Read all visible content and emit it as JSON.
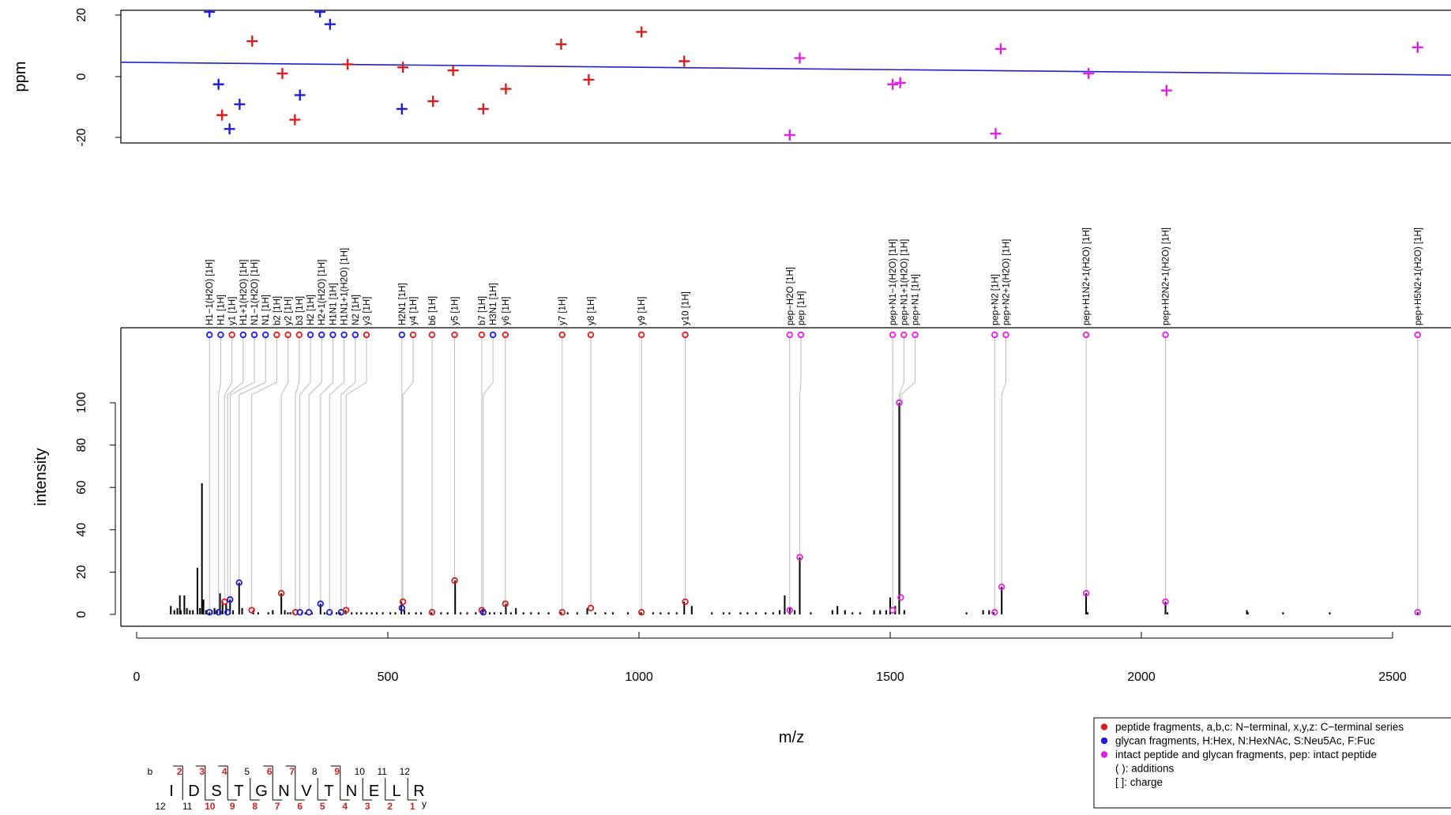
{
  "chart_data": [
    {
      "type": "scatter",
      "name": "ppm-error",
      "ylabel": "ppm",
      "xlim": [
        0,
        2620
      ],
      "ylim": [
        -22,
        22
      ],
      "y_ticks": [
        "20",
        "0",
        "-20"
      ],
      "grid": false,
      "trend_line": {
        "x": [
          -60,
          2620
        ],
        "y": [
          4.7,
          0.5
        ],
        "color": "#1f1fd6"
      },
      "series": [
        {
          "group": "peptide",
          "color": "#d61f1f",
          "points": [
            [
              170,
              -12.5
            ],
            [
              230,
              11.5
            ],
            [
              290,
              1
            ],
            [
              315,
              -14
            ],
            [
              420,
              4
            ],
            [
              530,
              3
            ],
            [
              590,
              -8
            ],
            [
              630,
              2
            ],
            [
              690,
              -10.5
            ],
            [
              735,
              -4
            ],
            [
              845,
              10.5
            ],
            [
              900,
              -1
            ],
            [
              1005,
              14.5
            ],
            [
              1090,
              5
            ]
          ]
        },
        {
          "group": "glycan",
          "color": "#1f1fd6",
          "points": [
            [
              145,
              21
            ],
            [
              163,
              -2.5
            ],
            [
              185,
              -17
            ],
            [
              205,
              -9
            ],
            [
              325,
              -6
            ],
            [
              365,
              21
            ],
            [
              385,
              17
            ],
            [
              528,
              -10.5
            ]
          ]
        },
        {
          "group": "intact",
          "color": "#e020e0",
          "points": [
            [
              1300,
              -19
            ],
            [
              1320,
              6
            ],
            [
              1505,
              -2.5
            ],
            [
              1520,
              -2
            ],
            [
              1710,
              -18.5
            ],
            [
              1720,
              9
            ],
            [
              1895,
              1
            ],
            [
              2050,
              -4.5
            ],
            [
              2550,
              9.5
            ]
          ]
        }
      ]
    },
    {
      "type": "bar",
      "name": "ms2-spectrum",
      "xlabel": "m/z",
      "ylabel": "intensity",
      "xlim": [
        -60,
        2620
      ],
      "ylim": [
        0,
        110
      ],
      "x_ticks": [
        "0",
        "500",
        "1000",
        "1500",
        "2000",
        "2500"
      ],
      "y_ticks": [
        "0",
        "20",
        "40",
        "60",
        "80",
        "100"
      ],
      "peaks": [
        [
          68,
          4
        ],
        [
          75,
          2
        ],
        [
          81,
          3
        ],
        [
          86,
          9
        ],
        [
          88,
          2
        ],
        [
          95,
          9
        ],
        [
          100,
          3
        ],
        [
          106,
          2
        ],
        [
          112,
          2
        ],
        [
          121,
          22
        ],
        [
          126,
          3
        ],
        [
          130,
          62
        ],
        [
          133,
          7
        ],
        [
          138,
          2
        ],
        [
          145,
          1
        ],
        [
          150,
          2
        ],
        [
          155,
          3
        ],
        [
          160,
          2
        ],
        [
          166,
          10
        ],
        [
          171,
          6
        ],
        [
          178,
          5
        ],
        [
          186,
          7
        ],
        [
          192,
          2
        ],
        [
          204,
          15
        ],
        [
          210,
          3
        ],
        [
          232,
          2
        ],
        [
          242,
          1
        ],
        [
          262,
          1
        ],
        [
          271,
          2
        ],
        [
          288,
          10
        ],
        [
          295,
          2
        ],
        [
          301,
          1
        ],
        [
          306,
          1
        ],
        [
          312,
          1
        ],
        [
          320,
          1
        ],
        [
          329,
          1
        ],
        [
          336,
          1
        ],
        [
          349,
          1
        ],
        [
          366,
          5
        ],
        [
          374,
          1
        ],
        [
          379,
          1
        ],
        [
          388,
          1
        ],
        [
          398,
          1
        ],
        [
          405,
          1
        ],
        [
          416,
          2
        ],
        [
          428,
          1
        ],
        [
          438,
          1
        ],
        [
          447,
          1
        ],
        [
          458,
          1
        ],
        [
          468,
          1
        ],
        [
          478,
          1
        ],
        [
          490,
          1
        ],
        [
          505,
          1
        ],
        [
          515,
          1
        ],
        [
          527,
          6
        ],
        [
          533,
          2
        ],
        [
          542,
          1
        ],
        [
          556,
          1
        ],
        [
          566,
          1
        ],
        [
          587,
          1
        ],
        [
          606,
          1
        ],
        [
          619,
          1
        ],
        [
          634,
          16
        ],
        [
          645,
          1
        ],
        [
          658,
          1
        ],
        [
          675,
          1
        ],
        [
          689,
          2
        ],
        [
          703,
          1
        ],
        [
          712,
          1
        ],
        [
          725,
          1
        ],
        [
          735,
          5
        ],
        [
          745,
          1
        ],
        [
          755,
          3
        ],
        [
          770,
          1
        ],
        [
          785,
          1
        ],
        [
          800,
          1
        ],
        [
          820,
          1
        ],
        [
          845,
          1
        ],
        [
          858,
          1
        ],
        [
          877,
          1
        ],
        [
          897,
          3
        ],
        [
          913,
          1
        ],
        [
          933,
          1
        ],
        [
          948,
          1
        ],
        [
          978,
          1
        ],
        [
          1004,
          1
        ],
        [
          1028,
          1
        ],
        [
          1043,
          1
        ],
        [
          1059,
          1
        ],
        [
          1075,
          1
        ],
        [
          1090,
          6
        ],
        [
          1105,
          4
        ],
        [
          1145,
          1
        ],
        [
          1168,
          1
        ],
        [
          1180,
          1
        ],
        [
          1202,
          1
        ],
        [
          1216,
          1
        ],
        [
          1233,
          1
        ],
        [
          1252,
          1
        ],
        [
          1267,
          1
        ],
        [
          1280,
          2
        ],
        [
          1290,
          9
        ],
        [
          1300,
          3
        ],
        [
          1310,
          2
        ],
        [
          1320,
          27
        ],
        [
          1342,
          1
        ],
        [
          1385,
          2
        ],
        [
          1395,
          4
        ],
        [
          1410,
          2
        ],
        [
          1425,
          1
        ],
        [
          1440,
          1
        ],
        [
          1468,
          2
        ],
        [
          1480,
          2
        ],
        [
          1492,
          2
        ],
        [
          1500,
          8
        ],
        [
          1510,
          4
        ],
        [
          1518,
          100
        ],
        [
          1528,
          2
        ],
        [
          1652,
          1
        ],
        [
          1685,
          2
        ],
        [
          1697,
          2
        ],
        [
          1706,
          1
        ],
        [
          1722,
          13
        ],
        [
          1890,
          10
        ],
        [
          1893,
          1
        ],
        [
          2048,
          6
        ],
        [
          2052,
          1
        ],
        [
          2210,
          2
        ],
        [
          2212,
          1
        ],
        [
          2282,
          1
        ],
        [
          2375,
          1
        ],
        [
          2550,
          1
        ]
      ],
      "annotations": [
        {
          "label": "H1−1(H2O) [1H]",
          "group": "glycan",
          "mz": 145,
          "intensity": 1
        },
        {
          "label": "H1 [1H]",
          "group": "glycan",
          "mz": 163,
          "intensity": 1
        },
        {
          "label": "y1 [1H]",
          "group": "peptide",
          "mz": 175,
          "intensity": 6
        },
        {
          "label": "H1+1(H2O) [1H]",
          "group": "glycan",
          "mz": 181,
          "intensity": 1
        },
        {
          "label": "N1−1(H2O) [1H]",
          "group": "glycan",
          "mz": 186,
          "intensity": 7
        },
        {
          "label": "N1 [1H]",
          "group": "glycan",
          "mz": 204,
          "intensity": 15
        },
        {
          "label": "b2 [1H]",
          "group": "peptide",
          "mz": 229,
          "intensity": 2
        },
        {
          "label": "y2 [1H]",
          "group": "peptide",
          "mz": 288,
          "intensity": 10
        },
        {
          "label": "b3 [1H]",
          "group": "peptide",
          "mz": 316,
          "intensity": 1
        },
        {
          "label": "H2 [1H]",
          "group": "glycan",
          "mz": 325,
          "intensity": 1
        },
        {
          "label": "H2+1(H2O) [1H]",
          "group": "glycan",
          "mz": 343,
          "intensity": 1
        },
        {
          "label": "H1N1 [1H]",
          "group": "glycan",
          "mz": 366,
          "intensity": 5
        },
        {
          "label": "H1N1+1(H2O) [1H]",
          "group": "glycan",
          "mz": 384,
          "intensity": 1
        },
        {
          "label": "N2 [1H]",
          "group": "glycan",
          "mz": 407,
          "intensity": 1
        },
        {
          "label": "y3 [1H]",
          "group": "peptide",
          "mz": 417,
          "intensity": 2
        },
        {
          "label": "H2N1 [1H]",
          "group": "glycan",
          "mz": 528,
          "intensity": 3
        },
        {
          "label": "y4 [1H]",
          "group": "peptide",
          "mz": 530,
          "intensity": 6
        },
        {
          "label": "b6 [1H]",
          "group": "peptide",
          "mz": 588,
          "intensity": 1
        },
        {
          "label": "y5 [1H]",
          "group": "peptide",
          "mz": 633,
          "intensity": 16
        },
        {
          "label": "b7 [1H]",
          "group": "peptide",
          "mz": 687,
          "intensity": 2
        },
        {
          "label": "H3N1 [1H]",
          "group": "glycan",
          "mz": 690,
          "intensity": 1
        },
        {
          "label": "y6 [1H]",
          "group": "peptide",
          "mz": 734,
          "intensity": 5
        },
        {
          "label": "y7 [1H]",
          "group": "peptide",
          "mz": 847,
          "intensity": 1
        },
        {
          "label": "y8 [1H]",
          "group": "peptide",
          "mz": 904,
          "intensity": 3
        },
        {
          "label": "y9 [1H]",
          "group": "peptide",
          "mz": 1005,
          "intensity": 1
        },
        {
          "label": "y10 [1H]",
          "group": "peptide",
          "mz": 1092,
          "intensity": 6
        },
        {
          "label": "pep−H2O [1H]",
          "group": "intact",
          "mz": 1300,
          "intensity": 2
        },
        {
          "label": "pep [1H]",
          "group": "intact",
          "mz": 1320,
          "intensity": 27
        },
        {
          "label": "pep+N1−1(H2O) [1H]",
          "group": "intact",
          "mz": 1505,
          "intensity": 2
        },
        {
          "label": "pep+N1 [1H]",
          "group": "intact",
          "mz": 1521,
          "intensity": 8
        },
        {
          "label": "pep+N1+1(H2O) [1H]",
          "group": "intact",
          "mz": 1518,
          "intensity": 100
        },
        {
          "label": "pep+N2 [1H]",
          "group": "intact",
          "mz": 1708,
          "intensity": 1
        },
        {
          "label": "pep+N2+1(H2O) [1H]",
          "group": "intact",
          "mz": 1722,
          "intensity": 13
        },
        {
          "label": "pep+H1N2+1(H2O) [1H]",
          "group": "intact",
          "mz": 1890,
          "intensity": 10
        },
        {
          "label": "pep+H2N2+1(H2O) [1H]",
          "group": "intact",
          "mz": 2048,
          "intensity": 6
        },
        {
          "label": "pep+H5N2+1(H2O) [1H]",
          "group": "intact",
          "mz": 2550,
          "intensity": 1
        }
      ]
    }
  ],
  "colors": {
    "peptide": "#d61f1f",
    "glycan": "#1f1fd6",
    "intact": "#e020e0",
    "connector": "#bbbbbb",
    "axis": "#000000"
  },
  "legend": {
    "placement": "bottom-right",
    "items": [
      {
        "group": "peptide",
        "text": "peptide fragments, a,b,c: N−terminal, x,y,z: C−terminal series"
      },
      {
        "group": "glycan",
        "text": "glycan fragments, H:Hex, N:HexNAc, S:Neu5Ac, F:Fuc"
      },
      {
        "group": "intact",
        "text": "intact peptide and glycan fragments, pep: intact peptide"
      },
      {
        "group": null,
        "text": "( ): additions"
      },
      {
        "group": null,
        "text": "[ ]: charge"
      }
    ]
  },
  "sequence": {
    "residues": [
      "I",
      "D",
      "S",
      "T",
      "G",
      "N",
      "V",
      "T",
      "N",
      "E",
      "L",
      "R"
    ],
    "b_label": "b",
    "y_label": "y",
    "b_numbers": [
      "2",
      "3",
      "4",
      "5",
      "6",
      "7",
      "8",
      "9",
      "10",
      "11",
      "12"
    ],
    "b_observed": [
      true,
      true,
      true,
      false,
      true,
      true,
      false,
      true,
      false,
      false,
      false
    ],
    "y_numbers": [
      "12",
      "11",
      "10",
      "9",
      "8",
      "7",
      "6",
      "5",
      "4",
      "3",
      "2",
      "1"
    ],
    "y_observed": [
      false,
      false,
      true,
      true,
      true,
      true,
      true,
      true,
      true,
      true,
      true,
      true
    ]
  }
}
